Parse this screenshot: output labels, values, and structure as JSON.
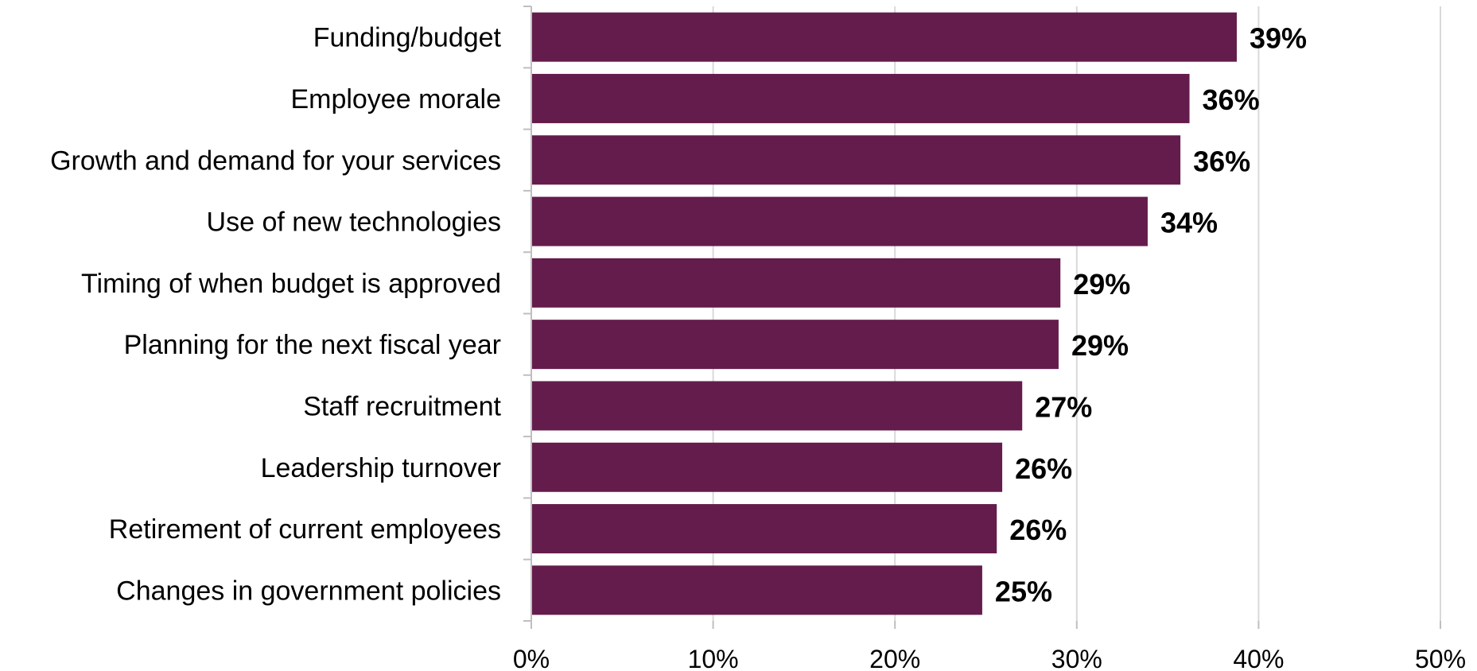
{
  "chart_data": {
    "type": "bar",
    "orientation": "horizontal",
    "categories": [
      "Funding/budget",
      "Employee morale",
      "Growth and demand for your services",
      "Use of new technologies",
      "Timing of when budget is approved",
      "Planning for the next fiscal year",
      "Staff recruitment",
      "Leadership turnover",
      "Retirement of current employees",
      "Changes in government policies"
    ],
    "values": [
      38.8,
      36.2,
      35.7,
      33.9,
      29.1,
      29.0,
      27.0,
      25.9,
      25.6,
      24.8
    ],
    "data_labels": [
      "39%",
      "36%",
      "36%",
      "34%",
      "29%",
      "29%",
      "27%",
      "26%",
      "26%",
      "25%"
    ],
    "xlim": [
      0,
      50
    ],
    "xticks": [
      0,
      10,
      20,
      30,
      40,
      50
    ],
    "xtick_labels": [
      "0%",
      "10%",
      "20%",
      "30%",
      "40%",
      "50%"
    ],
    "title": "",
    "xlabel": "",
    "ylabel": "",
    "grid": "vertical",
    "legend": "none",
    "colors": {
      "bar": "#641C4C",
      "grid": "#D9D9D9",
      "axis": "#BFBFBF",
      "text": "#000000"
    }
  }
}
